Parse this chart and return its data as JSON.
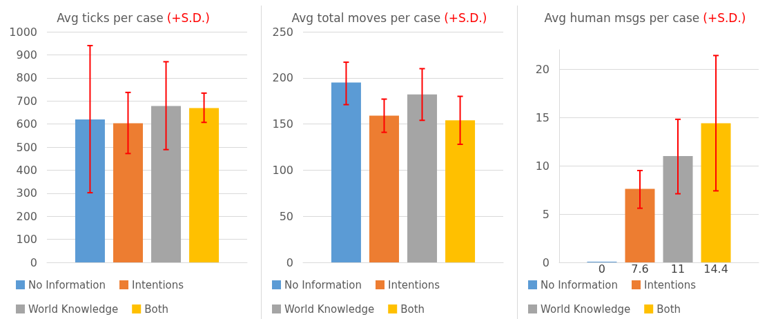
{
  "chart_data": [
    {
      "type": "bar",
      "title": "Avg ticks per case",
      "subtitle": "(+S.D.)",
      "categories": [
        null
      ],
      "series": [
        {
          "name": "No Information",
          "color": "#5b9bd5",
          "values": [
            620
          ],
          "errors": [
            [
              302,
              940
            ]
          ]
        },
        {
          "name": "Intentions",
          "color": "#ed7d31",
          "values": [
            603
          ],
          "errors": [
            [
              472,
              737
            ]
          ]
        },
        {
          "name": "World Knowledge",
          "color": "#a5a5a5",
          "values": [
            678
          ],
          "errors": [
            [
              489,
              870
            ]
          ]
        },
        {
          "name": "Both",
          "color": "#ffc000",
          "values": [
            669
          ],
          "errors": [
            [
              607,
              734
            ]
          ]
        }
      ],
      "ylim": [
        0,
        1000
      ],
      "yticks": [
        0,
        100,
        200,
        300,
        400,
        500,
        600,
        700,
        800,
        900,
        1000
      ],
      "grid": "y",
      "legend": "bottom"
    },
    {
      "type": "bar",
      "title": "Avg total moves per case",
      "subtitle": "(+S.D.)",
      "categories": [
        null
      ],
      "series": [
        {
          "name": "No Information",
          "color": "#5b9bd5",
          "values": [
            195
          ],
          "errors": [
            [
              171,
              217
            ]
          ]
        },
        {
          "name": "Intentions",
          "color": "#ed7d31",
          "values": [
            159
          ],
          "errors": [
            [
              141,
              177
            ]
          ]
        },
        {
          "name": "World Knowledge",
          "color": "#a5a5a5",
          "values": [
            182
          ],
          "errors": [
            [
              154,
              210
            ]
          ]
        },
        {
          "name": "Both",
          "color": "#ffc000",
          "values": [
            154
          ],
          "errors": [
            [
              128,
              180
            ]
          ]
        }
      ],
      "ylim": [
        0,
        250
      ],
      "yticks": [
        0,
        50,
        100,
        150,
        200,
        250
      ],
      "grid": "y",
      "legend": "bottom"
    },
    {
      "type": "bar",
      "title": "Avg human msgs per case",
      "subtitle": "(+S.D.)",
      "categories": [
        null
      ],
      "series": [
        {
          "name": "No Information",
          "color": "#5b9bd5",
          "values": [
            0
          ],
          "errors": [
            null
          ],
          "value_labels": [
            "0"
          ]
        },
        {
          "name": "Intentions",
          "color": "#ed7d31",
          "values": [
            7.6
          ],
          "errors": [
            [
              5.6,
              9.5
            ]
          ],
          "value_labels": [
            "7.6"
          ]
        },
        {
          "name": "World Knowledge",
          "color": "#a5a5a5",
          "values": [
            11
          ],
          "errors": [
            [
              7.1,
              14.8
            ]
          ],
          "value_labels": [
            "11"
          ]
        },
        {
          "name": "Both",
          "color": "#ffc000",
          "values": [
            14.4
          ],
          "errors": [
            [
              7.4,
              21.4
            ]
          ],
          "value_labels": [
            "14.4"
          ]
        }
      ],
      "ylim": [
        0,
        22
      ],
      "yticks": [
        0,
        5,
        10,
        15,
        20
      ],
      "grid": "y",
      "legend": "bottom"
    }
  ]
}
